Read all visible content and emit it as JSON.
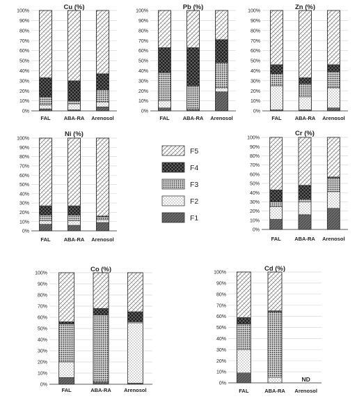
{
  "legend": {
    "entries": [
      "F5",
      "F4",
      "F3",
      "F2",
      "F1"
    ]
  },
  "styles": {
    "F1": "dark-hatch-fill",
    "F2": "sparse-dot-fill",
    "F3": "dense-dot-fill",
    "F4": "black-crosshatch-fill",
    "F5": "light-crosshatch-fill"
  },
  "colors": {
    "frame": "#333333",
    "grid": "#d9d9d9",
    "axis": "#595959",
    "text": "#222222",
    "F1": "#6b6b6b",
    "F4": "#1e1e1e"
  },
  "chart_data": [
    {
      "type": "bar",
      "stacked": true,
      "title": "Cu (%)",
      "categories": [
        "FAL",
        "ABA-RA",
        "Arenosol"
      ],
      "y_ticks": [
        "0%",
        "10%",
        "20%",
        "30%",
        "40%",
        "50%",
        "60%",
        "70%",
        "80%",
        "90%",
        "100%"
      ],
      "ylim": [
        0,
        100
      ],
      "grid": true,
      "legend": "shared",
      "series": [
        {
          "name": "F1",
          "values": [
            2,
            1,
            4
          ]
        },
        {
          "name": "F2",
          "values": [
            4,
            6,
            5
          ]
        },
        {
          "name": "F3",
          "values": [
            8,
            3,
            12
          ]
        },
        {
          "name": "F4",
          "values": [
            19,
            20,
            16
          ]
        },
        {
          "name": "F5",
          "values": [
            67,
            70,
            63
          ]
        }
      ]
    },
    {
      "type": "bar",
      "stacked": true,
      "title": "Pb (%)",
      "categories": [
        "FAL",
        "ABA-RA",
        "Arenosol"
      ],
      "y_ticks": [
        "0%",
        "10%",
        "20%",
        "30%",
        "40%",
        "50%",
        "60%",
        "70%",
        "80%",
        "90%",
        "100%"
      ],
      "ylim": [
        0,
        100
      ],
      "grid": true,
      "legend": "shared",
      "series": [
        {
          "name": "F1",
          "values": [
            3,
            1,
            19
          ]
        },
        {
          "name": "F2",
          "values": [
            7,
            1,
            4
          ]
        },
        {
          "name": "F3",
          "values": [
            28,
            23,
            25
          ]
        },
        {
          "name": "F4",
          "values": [
            25,
            38,
            23
          ]
        },
        {
          "name": "F5",
          "values": [
            37,
            37,
            29
          ]
        }
      ]
    },
    {
      "type": "bar",
      "stacked": true,
      "title": "Zn (%)",
      "categories": [
        "FAL",
        "ABA-RA",
        "Arenosol"
      ],
      "y_ticks": [
        "0%",
        "10%",
        "20%",
        "30%",
        "40%",
        "50%",
        "60%",
        "70%",
        "80%",
        "90%",
        "100%"
      ],
      "ylim": [
        0,
        100
      ],
      "grid": true,
      "legend": "shared",
      "series": [
        {
          "name": "F1",
          "values": [
            1,
            1,
            3
          ]
        },
        {
          "name": "F2",
          "values": [
            24,
            13,
            20
          ]
        },
        {
          "name": "F3",
          "values": [
            12,
            13,
            16
          ]
        },
        {
          "name": "F4",
          "values": [
            9,
            6,
            7
          ]
        },
        {
          "name": "F5",
          "values": [
            54,
            67,
            54
          ]
        }
      ]
    },
    {
      "type": "bar",
      "stacked": true,
      "title": "Ni (%)",
      "categories": [
        "FAL",
        "ABA-RA",
        "Arenosol"
      ],
      "y_ticks": [
        "0%",
        "10%",
        "20%",
        "30%",
        "40%",
        "50%",
        "60%",
        "70%",
        "80%",
        "90%",
        "100%"
      ],
      "ylim": [
        0,
        100
      ],
      "grid": true,
      "legend": "shared",
      "series": [
        {
          "name": "F1",
          "values": [
            7,
            6,
            9
          ]
        },
        {
          "name": "F2",
          "values": [
            4,
            5,
            3
          ]
        },
        {
          "name": "F3",
          "values": [
            6,
            6,
            3
          ]
        },
        {
          "name": "F4",
          "values": [
            10,
            10,
            1
          ]
        },
        {
          "name": "F5",
          "values": [
            73,
            73,
            84
          ]
        }
      ]
    },
    {
      "type": "bar",
      "stacked": true,
      "title": "Cr (%)",
      "categories": [
        "FAL",
        "ABA-RA",
        "Arenosol"
      ],
      "y_ticks": [
        "0%",
        "10%",
        "20%",
        "30%",
        "40%",
        "50%",
        "60%",
        "70%",
        "80%",
        "90%",
        "100%"
      ],
      "ylim": [
        0,
        100
      ],
      "grid": true,
      "legend": "shared",
      "series": [
        {
          "name": "F1",
          "values": [
            11,
            16,
            23
          ]
        },
        {
          "name": "F2",
          "values": [
            14,
            14,
            18
          ]
        },
        {
          "name": "F3",
          "values": [
            5,
            3,
            15
          ]
        },
        {
          "name": "F4",
          "values": [
            13,
            15,
            1
          ]
        },
        {
          "name": "F5",
          "values": [
            57,
            52,
            43
          ]
        }
      ]
    },
    {
      "type": "bar",
      "stacked": true,
      "title": "Co (%)",
      "categories": [
        "FAL",
        "ABA-RA",
        "Arenosol"
      ],
      "y_ticks": [
        "0%",
        "10%",
        "20%",
        "30%",
        "40%",
        "50%",
        "60%",
        "70%",
        "80%",
        "90%",
        "100%"
      ],
      "ylim": [
        0,
        100
      ],
      "grid": true,
      "legend": "shared",
      "series": [
        {
          "name": "F1",
          "values": [
            6,
            2,
            1
          ]
        },
        {
          "name": "F2",
          "values": [
            14,
            1,
            54
          ]
        },
        {
          "name": "F3",
          "values": [
            34,
            59,
            1
          ]
        },
        {
          "name": "F4",
          "values": [
            2,
            6,
            9
          ]
        },
        {
          "name": "F5",
          "values": [
            44,
            32,
            35
          ]
        }
      ]
    },
    {
      "type": "bar",
      "stacked": true,
      "title": "Cd (%)",
      "categories": [
        "FAL",
        "ABA-RA",
        "Arenosol"
      ],
      "y_ticks": [
        "0%",
        "10%",
        "20%",
        "30%",
        "40%",
        "50%",
        "60%",
        "70%",
        "80%",
        "90%",
        "100%"
      ],
      "ylim": [
        0,
        100
      ],
      "grid": true,
      "legend": "shared",
      "annotation": "ND",
      "series": [
        {
          "name": "F1",
          "values": [
            9,
            0,
            0
          ]
        },
        {
          "name": "F2",
          "values": [
            21,
            5,
            0
          ]
        },
        {
          "name": "F3",
          "values": [
            23,
            59,
            0
          ]
        },
        {
          "name": "F4",
          "values": [
            6,
            1,
            0
          ]
        },
        {
          "name": "F5",
          "values": [
            41,
            35,
            0
          ]
        }
      ]
    }
  ]
}
